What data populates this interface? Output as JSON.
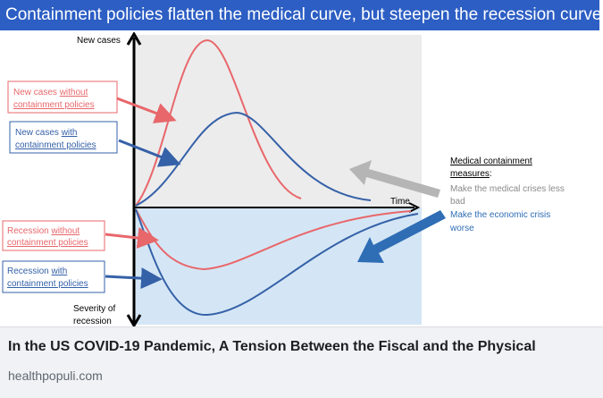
{
  "banner": {
    "title": "Containment policies flatten the medical curve, but steepen the recession curve"
  },
  "figure": {
    "axis_top_label": "New cases",
    "axis_bottom_label_line1": "Severity of",
    "axis_bottom_label_line2": "recession",
    "time_label": "Time",
    "callouts": {
      "cases_without": {
        "line1": "New cases ",
        "line1_underlined": "without",
        "line2": "containment policies"
      },
      "cases_with": {
        "line1": "New cases ",
        "line1_underlined": "with",
        "line2": "containment policies"
      },
      "recession_without": {
        "line1": "Recession ",
        "line1_underlined": "without",
        "line2": "containment policies"
      },
      "recession_with": {
        "line1": "Recession ",
        "line1_underlined": "with",
        "line2": "containment policies"
      }
    },
    "measures": {
      "heading_line1": "Medical containment",
      "heading_line2": "measures",
      "heading_colon": ":",
      "medical_line1": "Make the medical crises less",
      "medical_line2": "bad",
      "economic_line1": "Make the economic crisis",
      "economic_line2": "worse"
    },
    "colors": {
      "red_curve": "#e8676b",
      "blue_curve": "#3561a8",
      "upper_bg": "#ececec",
      "lower_bg": "#d4e6f5",
      "gray_arrow": "#b5b5b5",
      "blue_arrow": "#2f6db5"
    }
  },
  "caption": {
    "title": "In the US COVID-19 Pandemic, A Tension Between the Fiscal and the Physical",
    "source": "healthpopuli.com"
  }
}
